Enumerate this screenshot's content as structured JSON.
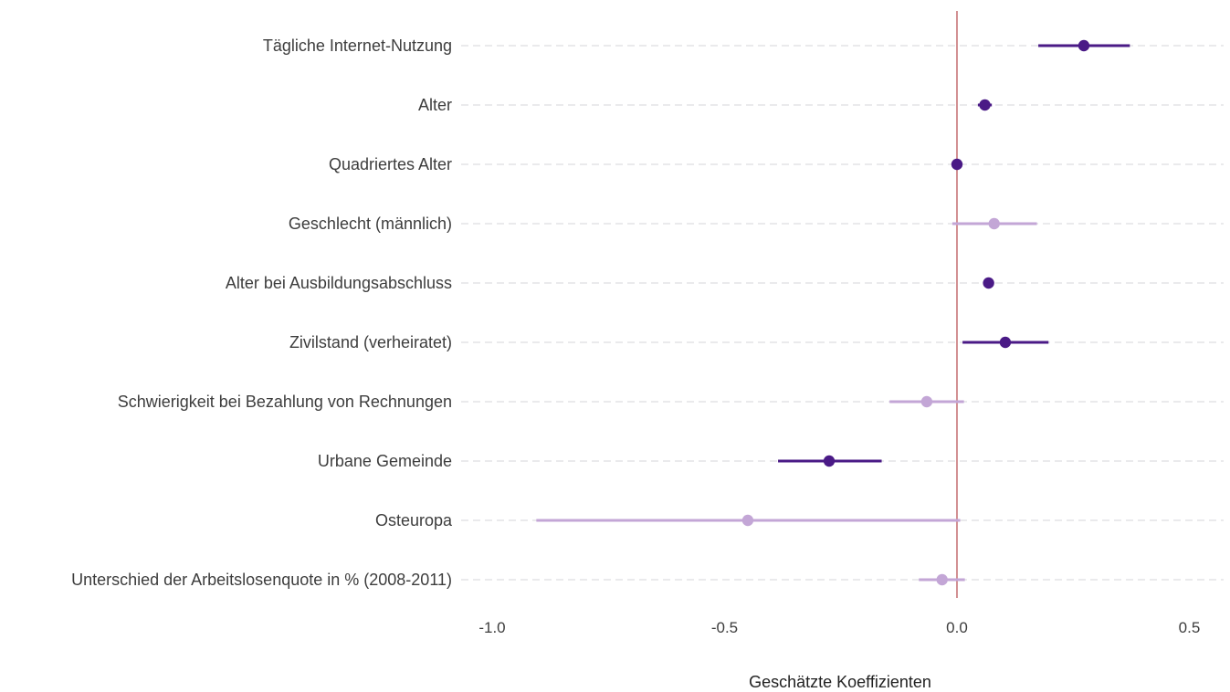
{
  "chart_data": {
    "type": "scatter",
    "subtype": "coefficient-plot",
    "title": "",
    "xlabel": "Geschätzte Koeffizienten",
    "ylabel": "",
    "xlim": [
      -1.05,
      0.57
    ],
    "xticks": [
      -1.0,
      -0.5,
      0.0,
      0.5
    ],
    "xtick_labels": [
      "-1.0",
      "-0.5",
      "0.0",
      "0.5"
    ],
    "reference_line": 0.0,
    "reference_line_color": "#b5474b",
    "grid": "horizontal dashed",
    "legend": "none",
    "colors": {
      "significant": "#4a1a86",
      "not_significant": "#c3a6d6"
    },
    "categories": [
      "Tägliche Internet-Nutzung",
      "Alter",
      "Quadriertes Alter",
      "Geschlecht (männlich)",
      "Alter bei Ausbildungsabschluss",
      "Zivilstand (verheiratet)",
      "Schwierigkeit bei Bezahlung von Rechnungen",
      "Urbane Gemeinde",
      "Osteuropa",
      "Unterschied der Arbeitslosenquote in % (2008-2011)"
    ],
    "estimates": [
      0.273,
      0.06,
      0.0,
      0.08,
      0.068,
      0.104,
      -0.065,
      -0.275,
      -0.45,
      -0.032
    ],
    "ci_lower": [
      0.175,
      0.045,
      0.0,
      -0.01,
      0.066,
      0.012,
      -0.145,
      -0.385,
      -0.905,
      -0.082
    ],
    "ci_upper": [
      0.372,
      0.075,
      0.0,
      0.172,
      0.07,
      0.197,
      0.015,
      -0.162,
      0.007,
      0.017
    ],
    "significant": [
      true,
      true,
      true,
      false,
      true,
      true,
      false,
      true,
      false,
      false
    ]
  }
}
